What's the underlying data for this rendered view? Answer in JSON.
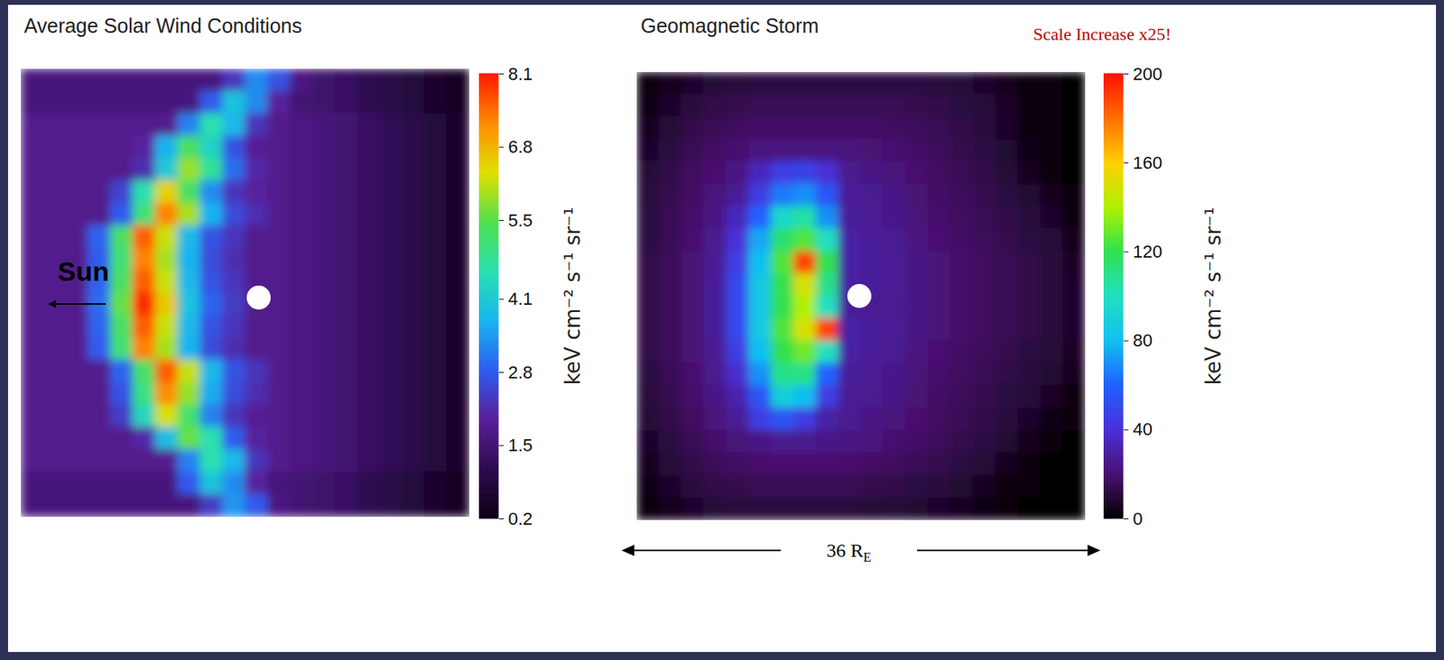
{
  "chart_data": [
    {
      "type": "heatmap",
      "title": "Average Solar Wind Conditions",
      "tick_labels": false,
      "annotations": [
        {
          "text": "Sun"
        }
      ],
      "cells": [
        [
          1.6,
          1.6,
          1.6,
          1.6,
          1.6,
          1.6,
          1.6,
          1.6,
          1.6,
          2.3,
          3.3,
          2.7,
          1.7,
          1.4,
          1.3,
          1.1,
          1.0,
          0.8,
          0.6,
          0.4
        ],
        [
          1.6,
          1.6,
          1.6,
          1.6,
          1.6,
          1.6,
          1.6,
          1.6,
          2.8,
          4.0,
          3.3,
          2.0,
          1.5,
          1.4,
          1.3,
          1.1,
          1.0,
          0.8,
          0.6,
          0.4
        ],
        [
          1.8,
          1.8,
          1.8,
          1.8,
          1.8,
          1.8,
          1.8,
          3.2,
          4.6,
          3.8,
          2.3,
          1.8,
          1.7,
          1.6,
          1.5,
          1.3,
          1.2,
          1.0,
          0.8,
          0.6
        ],
        [
          1.8,
          1.8,
          1.8,
          1.8,
          1.8,
          2.0,
          3.7,
          5.3,
          4.3,
          2.7,
          1.9,
          1.8,
          1.7,
          1.6,
          1.5,
          1.3,
          1.2,
          1.0,
          0.8,
          0.6
        ],
        [
          1.8,
          1.8,
          1.8,
          1.8,
          1.8,
          2.2,
          4.1,
          5.9,
          4.8,
          3.0,
          2.1,
          1.8,
          1.7,
          1.6,
          1.5,
          1.3,
          1.2,
          1.0,
          0.8,
          0.6
        ],
        [
          1.8,
          1.8,
          1.8,
          1.8,
          2.5,
          4.6,
          6.5,
          5.3,
          3.3,
          2.3,
          2.0,
          1.8,
          1.7,
          1.6,
          1.5,
          1.3,
          1.2,
          1.0,
          0.8,
          0.6
        ],
        [
          1.8,
          1.8,
          1.8,
          1.8,
          2.8,
          5.1,
          7.3,
          6.0,
          3.7,
          2.6,
          2.2,
          1.8,
          1.7,
          1.6,
          1.5,
          1.3,
          1.2,
          1.0,
          0.8,
          0.6
        ],
        [
          1.8,
          1.8,
          1.8,
          2.9,
          5.3,
          7.6,
          6.2,
          3.8,
          2.7,
          2.3,
          1.8,
          1.8,
          1.7,
          1.6,
          1.5,
          1.3,
          1.2,
          1.0,
          0.8,
          0.6
        ],
        [
          1.8,
          1.8,
          1.8,
          2.8,
          5.1,
          7.3,
          6.0,
          3.7,
          2.6,
          2.2,
          1.8,
          1.8,
          1.7,
          1.6,
          1.5,
          1.3,
          1.2,
          1.0,
          0.8,
          0.6
        ],
        [
          1.8,
          1.8,
          1.8,
          2.9,
          5.3,
          7.6,
          6.2,
          3.8,
          2.7,
          2.3,
          1.8,
          1.8,
          1.7,
          1.6,
          1.5,
          1.3,
          1.2,
          1.0,
          0.8,
          0.6
        ],
        [
          1.8,
          1.8,
          1.8,
          3.0,
          5.6,
          8.0,
          6.6,
          4.0,
          2.9,
          2.4,
          1.8,
          1.8,
          1.7,
          1.6,
          1.5,
          1.3,
          1.2,
          1.0,
          0.8,
          0.6
        ],
        [
          1.8,
          1.8,
          1.8,
          2.9,
          5.3,
          7.6,
          6.2,
          3.8,
          2.7,
          2.3,
          1.8,
          1.8,
          1.7,
          1.6,
          1.5,
          1.3,
          1.2,
          1.0,
          0.8,
          0.6
        ],
        [
          1.8,
          1.8,
          1.8,
          2.8,
          5.1,
          7.3,
          6.0,
          3.7,
          2.6,
          2.2,
          1.8,
          1.8,
          1.7,
          1.6,
          1.5,
          1.3,
          1.2,
          1.0,
          0.8,
          0.6
        ],
        [
          1.8,
          1.8,
          1.8,
          1.8,
          2.9,
          5.3,
          7.6,
          6.2,
          3.8,
          2.7,
          2.3,
          1.8,
          1.7,
          1.6,
          1.5,
          1.3,
          1.2,
          1.0,
          0.8,
          0.6
        ],
        [
          1.8,
          1.8,
          1.8,
          1.8,
          2.7,
          5.0,
          7.2,
          5.9,
          3.6,
          2.6,
          2.2,
          1.8,
          1.7,
          1.6,
          1.5,
          1.3,
          1.2,
          1.0,
          0.8,
          0.6
        ],
        [
          1.8,
          1.8,
          1.8,
          1.8,
          2.4,
          4.4,
          6.3,
          5.2,
          3.2,
          2.3,
          1.9,
          1.8,
          1.7,
          1.6,
          1.5,
          1.3,
          1.2,
          1.0,
          0.8,
          0.6
        ],
        [
          1.8,
          1.8,
          1.8,
          1.8,
          1.8,
          2.1,
          3.9,
          5.6,
          4.6,
          2.8,
          2.0,
          1.8,
          1.7,
          1.6,
          1.5,
          1.3,
          1.2,
          1.0,
          0.8,
          0.6
        ],
        [
          1.8,
          1.8,
          1.8,
          1.8,
          1.8,
          1.8,
          1.8,
          3.2,
          4.6,
          3.8,
          2.3,
          1.8,
          1.7,
          1.6,
          1.5,
          1.3,
          1.2,
          1.0,
          0.8,
          0.6
        ],
        [
          1.6,
          1.6,
          1.6,
          1.6,
          1.6,
          1.6,
          1.6,
          2.8,
          4.0,
          3.3,
          2.0,
          1.6,
          1.5,
          1.4,
          1.3,
          1.1,
          1.0,
          0.8,
          0.6,
          0.4
        ],
        [
          1.6,
          1.6,
          1.6,
          1.6,
          1.6,
          1.6,
          1.6,
          1.6,
          2.4,
          3.4,
          2.8,
          1.7,
          1.5,
          1.4,
          1.3,
          1.1,
          1.0,
          0.8,
          0.6,
          0.4
        ]
      ],
      "colorbar": {
        "label": "keV cm⁻² s⁻¹ sr⁻¹",
        "range": [
          0.2,
          8.1
        ],
        "ticks": [
          0.2,
          1.5,
          2.8,
          4.1,
          5.5,
          6.8,
          8.1
        ]
      }
    },
    {
      "type": "heatmap",
      "title": "Geomagnetic Storm",
      "tick_labels": false,
      "annotations": [
        {
          "text": "Scale Increase x25!"
        },
        {
          "text": "36 R",
          "subscript": "E"
        }
      ],
      "cells": [
        [
          3,
          5,
          8,
          10,
          11,
          12,
          12,
          12,
          12,
          12,
          12,
          12,
          12,
          11,
          10,
          8,
          5,
          3,
          2,
          1
        ],
        [
          4,
          8,
          11,
          13,
          14,
          15,
          15,
          15,
          15,
          15,
          15,
          15,
          14,
          13,
          12,
          10,
          7,
          3,
          2,
          1
        ],
        [
          6,
          10,
          13,
          15,
          17,
          18,
          18,
          18,
          18,
          18,
          18,
          17,
          16,
          15,
          13,
          11,
          8,
          3,
          2,
          1
        ],
        [
          8,
          12,
          15,
          18,
          20,
          22,
          23,
          23,
          23,
          22,
          21,
          20,
          18,
          16,
          14,
          12,
          9,
          4,
          2,
          1
        ],
        [
          10,
          13,
          17,
          20,
          24,
          35,
          45,
          48,
          40,
          26,
          24,
          22,
          20,
          17,
          15,
          13,
          10,
          6,
          3,
          1
        ],
        [
          11,
          14,
          18,
          22,
          27,
          45,
          65,
          70,
          55,
          28,
          26,
          24,
          21,
          18,
          16,
          14,
          12,
          9,
          5,
          2
        ],
        [
          12,
          15,
          19,
          24,
          35,
          60,
          95,
          105,
          70,
          28,
          27,
          25,
          22,
          19,
          17,
          15,
          13,
          11,
          8,
          3
        ],
        [
          12,
          15,
          20,
          26,
          40,
          75,
          115,
          125,
          100,
          30,
          28,
          26,
          23,
          20,
          18,
          16,
          14,
          12,
          10,
          5
        ],
        [
          13,
          16,
          21,
          27,
          45,
          80,
          125,
          190,
          120,
          30,
          28,
          27,
          24,
          21,
          19,
          17,
          15,
          13,
          11,
          7
        ],
        [
          13,
          16,
          21,
          28,
          50,
          85,
          120,
          150,
          110,
          30,
          28,
          27,
          24,
          21,
          19,
          17,
          15,
          13,
          11,
          8
        ],
        [
          13,
          16,
          21,
          28,
          50,
          85,
          120,
          140,
          100,
          28,
          27,
          26,
          24,
          21,
          19,
          17,
          15,
          13,
          11,
          8
        ],
        [
          13,
          16,
          21,
          28,
          50,
          85,
          125,
          150,
          190,
          30,
          28,
          27,
          24,
          21,
          19,
          17,
          15,
          13,
          11,
          8
        ],
        [
          13,
          16,
          21,
          27,
          45,
          80,
          120,
          130,
          100,
          30,
          28,
          26,
          23,
          20,
          18,
          16,
          14,
          12,
          10,
          7
        ],
        [
          12,
          15,
          20,
          26,
          38,
          70,
          110,
          110,
          60,
          28,
          27,
          25,
          22,
          19,
          17,
          15,
          13,
          11,
          9,
          5
        ],
        [
          11,
          14,
          19,
          24,
          32,
          55,
          90,
          80,
          45,
          27,
          26,
          24,
          21,
          18,
          16,
          14,
          12,
          10,
          7,
          3
        ],
        [
          10,
          13,
          17,
          22,
          27,
          45,
          55,
          45,
          30,
          26,
          24,
          22,
          20,
          17,
          15,
          13,
          11,
          8,
          4,
          2
        ],
        [
          8,
          12,
          15,
          19,
          22,
          24,
          26,
          26,
          25,
          24,
          22,
          20,
          18,
          16,
          14,
          12,
          9,
          5,
          2,
          1
        ],
        [
          6,
          10,
          13,
          16,
          18,
          19,
          20,
          20,
          20,
          19,
          18,
          17,
          15,
          14,
          12,
          10,
          6,
          3,
          1,
          1
        ],
        [
          4,
          8,
          11,
          13,
          14,
          15,
          15,
          15,
          15,
          15,
          14,
          13,
          12,
          11,
          9,
          6,
          3,
          2,
          1,
          1
        ],
        [
          2,
          5,
          8,
          10,
          11,
          11,
          11,
          11,
          11,
          11,
          10,
          10,
          9,
          8,
          6,
          4,
          2,
          1,
          1,
          0
        ]
      ],
      "colorbar": {
        "label": "keV cm⁻² s⁻¹ sr⁻¹",
        "range": [
          0,
          200
        ],
        "ticks": [
          0,
          40,
          80,
          120,
          160,
          200
        ]
      }
    }
  ]
}
